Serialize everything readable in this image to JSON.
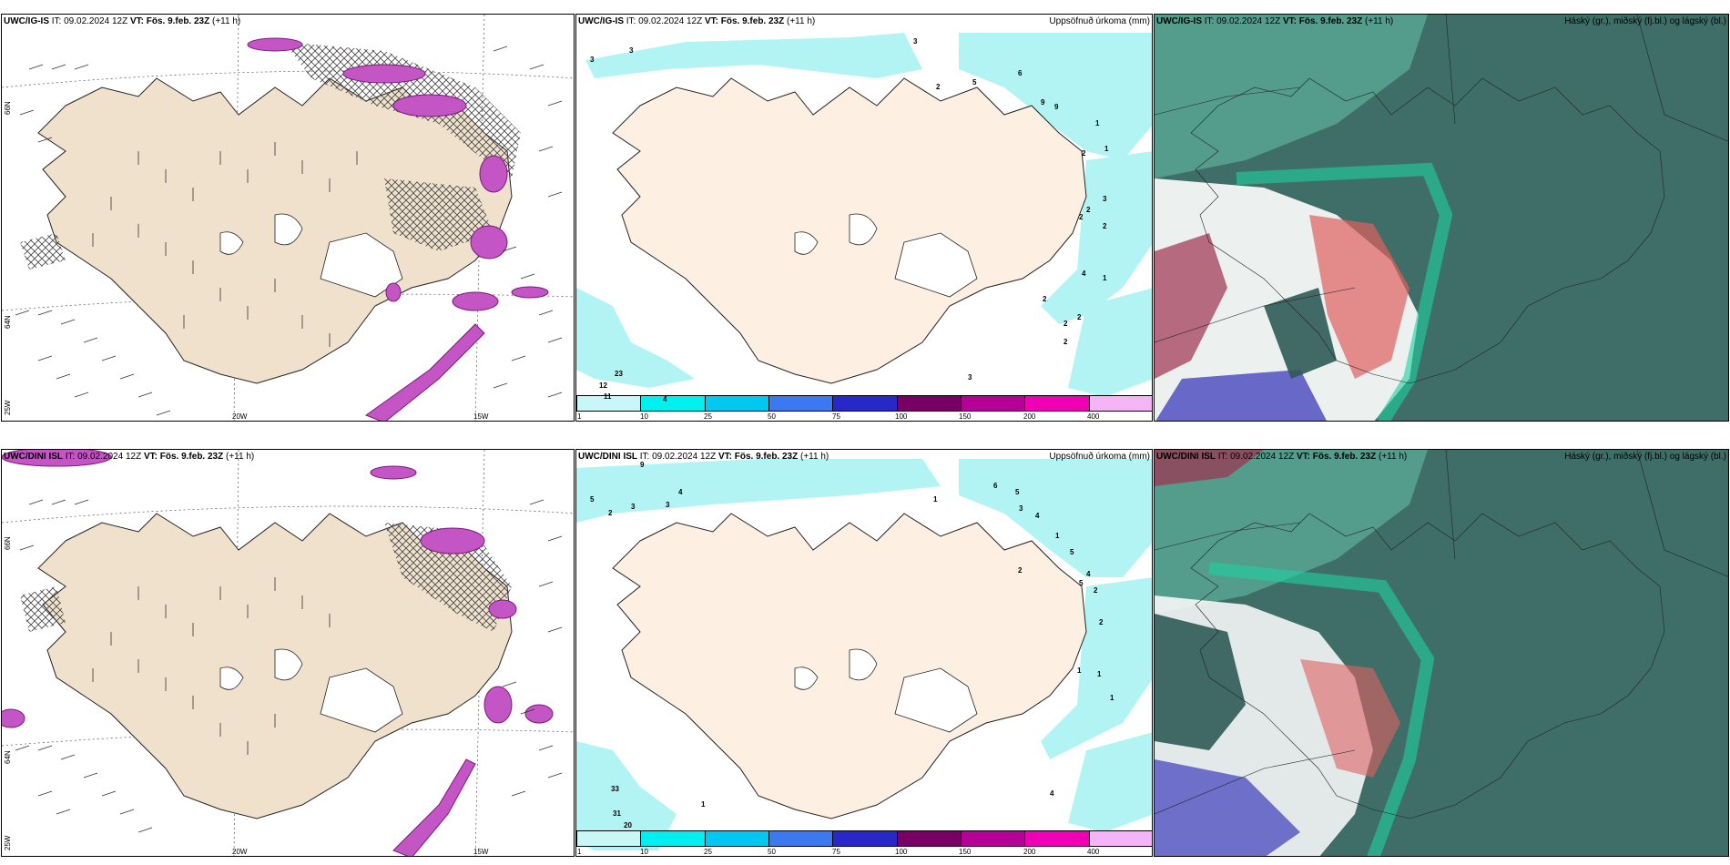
{
  "rows": [
    {
      "model": "UWC/IG-IS",
      "it_label": "IT:",
      "it_value": "09.02.2024 12Z",
      "vt_label": "VT:",
      "vt_value": "Fös. 9.feb. 23Z",
      "lead": "(+11 h)"
    },
    {
      "model": "UWC/DINI ISL",
      "it_label": "IT:",
      "it_value": "09.02.2024 12Z",
      "vt_label": "VT:",
      "vt_value": "Fös. 9.feb. 23Z",
      "lead": "(+11 h)"
    }
  ],
  "panel_titles": {
    "precip": "Uppsöfnuð úrkoma (mm)",
    "clouds": "Háský (gr.), miðský (fj.bl.) og lágský (bl.)"
  },
  "axis_labels": {
    "lat_66": "66N",
    "lat_64": "64N",
    "lon_25": "25W",
    "lon_20": "20W",
    "lon_15": "15W"
  },
  "colorbar": {
    "labels": [
      "1",
      "10",
      "25",
      "50",
      "75",
      "100",
      "150",
      "200",
      "400"
    ],
    "colors": [
      "#c9f7f7",
      "#00f0f0",
      "#00c8f0",
      "#3c78f0",
      "#2828c8",
      "#780064",
      "#b40096",
      "#f000b4",
      "#f5b4f5"
    ]
  },
  "precip_labels_top": [
    "3",
    "3",
    "3",
    "2",
    "5",
    "6",
    "9",
    "9",
    "1",
    "2",
    "1",
    "2",
    "3",
    "2",
    "2",
    "4",
    "1",
    "2",
    "2",
    "2",
    "2",
    "3",
    "23",
    "12",
    "11",
    "4"
  ],
  "precip_labels_bottom": [
    "5",
    "2",
    "3",
    "9",
    "3",
    "4",
    "1",
    "6",
    "5",
    "3",
    "4",
    "1",
    "2",
    "5",
    "4",
    "5",
    "2",
    "1",
    "2",
    "1",
    "1",
    "33",
    "31",
    "20",
    "1",
    "4"
  ]
}
